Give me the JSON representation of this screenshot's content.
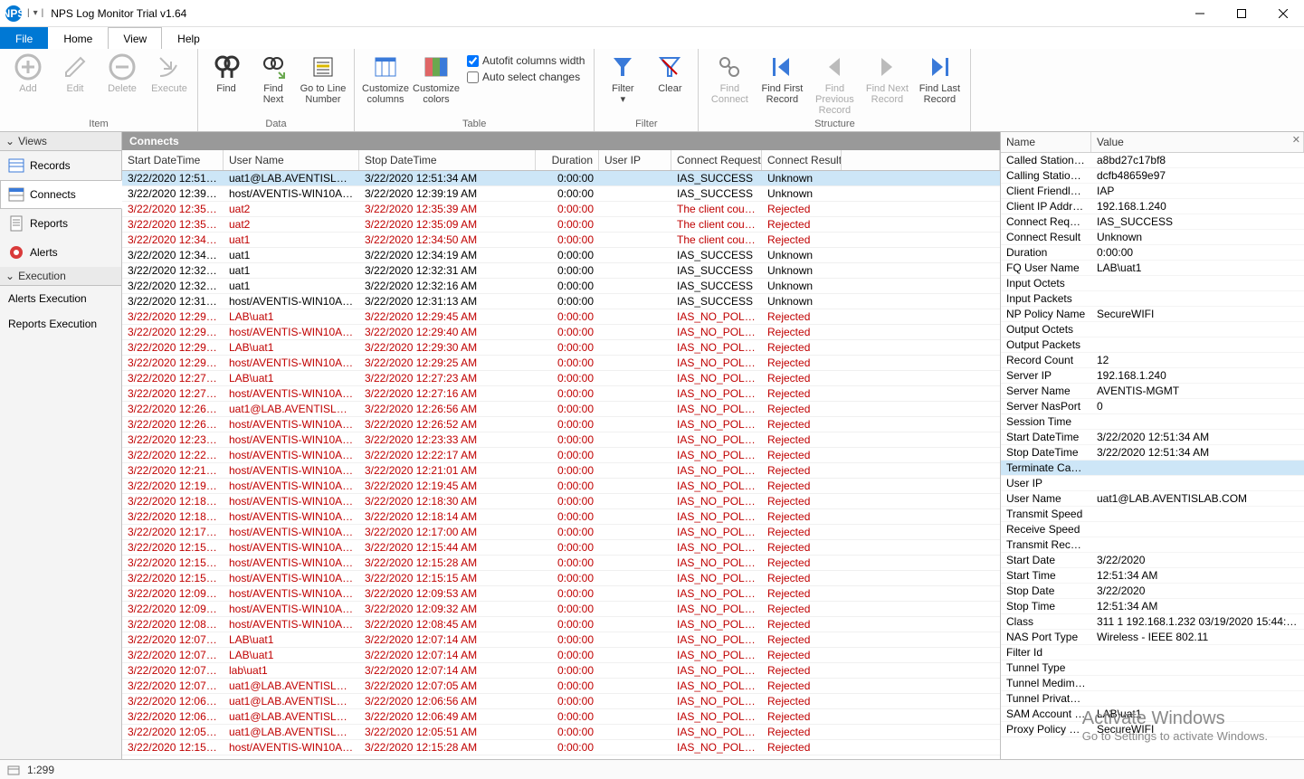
{
  "app": {
    "icon_text": "NPS",
    "title": "NPS Log Monitor Trial v1.64"
  },
  "menu": {
    "file": "File",
    "home": "Home",
    "view": "View",
    "help": "Help",
    "active": "View"
  },
  "ribbon": {
    "groups": {
      "item": {
        "label": "Item",
        "btns": [
          {
            "id": "add",
            "label": "Add"
          },
          {
            "id": "edit",
            "label": "Edit"
          },
          {
            "id": "delete",
            "label": "Delete"
          },
          {
            "id": "execute",
            "label": "Execute"
          }
        ]
      },
      "data": {
        "label": "Data",
        "btns": [
          {
            "id": "find",
            "label": "Find"
          },
          {
            "id": "find-next",
            "label": "Find\nNext"
          },
          {
            "id": "goto-line",
            "label": "Go to Line\nNumber"
          }
        ]
      },
      "table": {
        "label": "Table",
        "btns": [
          {
            "id": "customize-columns",
            "label": "Customize\ncolumns"
          },
          {
            "id": "customize-colors",
            "label": "Customize\ncolors"
          }
        ],
        "opts": {
          "autofit": "Autofit columns width",
          "autoselect": "Auto select changes"
        }
      },
      "filter": {
        "label": "Filter",
        "btns": [
          {
            "id": "filter",
            "label": "Filter"
          },
          {
            "id": "clear",
            "label": "Clear"
          }
        ]
      },
      "structure": {
        "label": "Structure",
        "btns": [
          {
            "id": "find-connect",
            "label": "Find\nConnect"
          },
          {
            "id": "find-first-record",
            "label": "Find First\nRecord"
          },
          {
            "id": "find-previous-record",
            "label": "Find Previous\nRecord"
          },
          {
            "id": "find-next-record",
            "label": "Find Next\nRecord"
          },
          {
            "id": "find-last-record",
            "label": "Find Last\nRecord"
          }
        ]
      }
    }
  },
  "sidebar": {
    "views_header": "Views",
    "views": [
      {
        "id": "records",
        "label": "Records"
      },
      {
        "id": "connects",
        "label": "Connects",
        "selected": true
      },
      {
        "id": "reports",
        "label": "Reports"
      },
      {
        "id": "alerts",
        "label": "Alerts"
      }
    ],
    "exec_header": "Execution",
    "exec": [
      {
        "id": "alerts-exec",
        "label": "Alerts Execution"
      },
      {
        "id": "reports-exec",
        "label": "Reports Execution"
      }
    ]
  },
  "grid": {
    "title": "Connects",
    "columns": {
      "start": "Start DateTime",
      "user": "User Name",
      "stop": "Stop DateTime",
      "duration": "Duration",
      "uip": "User IP",
      "req": "Connect Request",
      "res": "Connect Result"
    },
    "rows": [
      {
        "sel": true,
        "red": false,
        "start": "3/22/2020 12:51:3...",
        "user": "uat1@LAB.AVENTISLAB.COM",
        "stop": "3/22/2020 12:51:34 AM",
        "dur": "0:00:00",
        "uip": "",
        "req": "IAS_SUCCESS",
        "res": "Unknown"
      },
      {
        "red": false,
        "start": "3/22/2020 12:39:1...",
        "user": "host/AVENTIS-WIN10A.LAB...",
        "stop": "3/22/2020 12:39:19 AM",
        "dur": "0:00:00",
        "uip": "",
        "req": "IAS_SUCCESS",
        "res": "Unknown"
      },
      {
        "red": true,
        "start": "3/22/2020 12:35:3...",
        "user": "uat2",
        "stop": "3/22/2020 12:35:39 AM",
        "dur": "0:00:00",
        "uip": "",
        "req": "The client could ...",
        "res": "Rejected"
      },
      {
        "red": true,
        "start": "3/22/2020 12:35:0...",
        "user": "uat2",
        "stop": "3/22/2020 12:35:09 AM",
        "dur": "0:00:00",
        "uip": "",
        "req": "The client could ...",
        "res": "Rejected"
      },
      {
        "red": true,
        "start": "3/22/2020 12:34:5...",
        "user": "uat1",
        "stop": "3/22/2020 12:34:50 AM",
        "dur": "0:00:00",
        "uip": "",
        "req": "The client could ...",
        "res": "Rejected"
      },
      {
        "red": false,
        "start": "3/22/2020 12:34:1...",
        "user": "uat1",
        "stop": "3/22/2020 12:34:19 AM",
        "dur": "0:00:00",
        "uip": "",
        "req": "IAS_SUCCESS",
        "res": "Unknown"
      },
      {
        "red": false,
        "start": "3/22/2020 12:32:3...",
        "user": "uat1",
        "stop": "3/22/2020 12:32:31 AM",
        "dur": "0:00:00",
        "uip": "",
        "req": "IAS_SUCCESS",
        "res": "Unknown"
      },
      {
        "red": false,
        "start": "3/22/2020 12:32:1...",
        "user": "uat1",
        "stop": "3/22/2020 12:32:16 AM",
        "dur": "0:00:00",
        "uip": "",
        "req": "IAS_SUCCESS",
        "res": "Unknown"
      },
      {
        "red": false,
        "start": "3/22/2020 12:31:1...",
        "user": "host/AVENTIS-WIN10A.LAB...",
        "stop": "3/22/2020 12:31:13 AM",
        "dur": "0:00:00",
        "uip": "",
        "req": "IAS_SUCCESS",
        "res": "Unknown"
      },
      {
        "red": true,
        "start": "3/22/2020 12:29:4...",
        "user": "LAB\\uat1",
        "stop": "3/22/2020 12:29:45 AM",
        "dur": "0:00:00",
        "uip": "",
        "req": "IAS_NO_POLIC...",
        "res": "Rejected"
      },
      {
        "red": true,
        "start": "3/22/2020 12:29:4...",
        "user": "host/AVENTIS-WIN10A.LAB...",
        "stop": "3/22/2020 12:29:40 AM",
        "dur": "0:00:00",
        "uip": "",
        "req": "IAS_NO_POLIC...",
        "res": "Rejected"
      },
      {
        "red": true,
        "start": "3/22/2020 12:29:3...",
        "user": "LAB\\uat1",
        "stop": "3/22/2020 12:29:30 AM",
        "dur": "0:00:00",
        "uip": "",
        "req": "IAS_NO_POLIC...",
        "res": "Rejected"
      },
      {
        "red": true,
        "start": "3/22/2020 12:29:2...",
        "user": "host/AVENTIS-WIN10A.LAB...",
        "stop": "3/22/2020 12:29:25 AM",
        "dur": "0:00:00",
        "uip": "",
        "req": "IAS_NO_POLIC...",
        "res": "Rejected"
      },
      {
        "red": true,
        "start": "3/22/2020 12:27:2...",
        "user": "LAB\\uat1",
        "stop": "3/22/2020 12:27:23 AM",
        "dur": "0:00:00",
        "uip": "",
        "req": "IAS_NO_POLIC...",
        "res": "Rejected"
      },
      {
        "red": true,
        "start": "3/22/2020 12:27:1...",
        "user": "host/AVENTIS-WIN10A.LAB...",
        "stop": "3/22/2020 12:27:16 AM",
        "dur": "0:00:00",
        "uip": "",
        "req": "IAS_NO_POLIC...",
        "res": "Rejected"
      },
      {
        "red": true,
        "start": "3/22/2020 12:26:5...",
        "user": "uat1@LAB.AVENTISLAB.COM",
        "stop": "3/22/2020 12:26:56 AM",
        "dur": "0:00:00",
        "uip": "",
        "req": "IAS_NO_POLIC...",
        "res": "Rejected"
      },
      {
        "red": true,
        "start": "3/22/2020 12:26:5...",
        "user": "host/AVENTIS-WIN10A.LAB...",
        "stop": "3/22/2020 12:26:52 AM",
        "dur": "0:00:00",
        "uip": "",
        "req": "IAS_NO_POLIC...",
        "res": "Rejected"
      },
      {
        "red": true,
        "start": "3/22/2020 12:23:3...",
        "user": "host/AVENTIS-WIN10A.LAB...",
        "stop": "3/22/2020 12:23:33 AM",
        "dur": "0:00:00",
        "uip": "",
        "req": "IAS_NO_POLIC...",
        "res": "Rejected"
      },
      {
        "red": true,
        "start": "3/22/2020 12:22:1...",
        "user": "host/AVENTIS-WIN10A.LAB...",
        "stop": "3/22/2020 12:22:17 AM",
        "dur": "0:00:00",
        "uip": "",
        "req": "IAS_NO_POLIC...",
        "res": "Rejected"
      },
      {
        "red": true,
        "start": "3/22/2020 12:21:0...",
        "user": "host/AVENTIS-WIN10A.LAB...",
        "stop": "3/22/2020 12:21:01 AM",
        "dur": "0:00:00",
        "uip": "",
        "req": "IAS_NO_POLIC...",
        "res": "Rejected"
      },
      {
        "red": true,
        "start": "3/22/2020 12:19:4...",
        "user": "host/AVENTIS-WIN10A.LAB...",
        "stop": "3/22/2020 12:19:45 AM",
        "dur": "0:00:00",
        "uip": "",
        "req": "IAS_NO_POLIC...",
        "res": "Rejected"
      },
      {
        "red": true,
        "start": "3/22/2020 12:18:3...",
        "user": "host/AVENTIS-WIN10A.LAB...",
        "stop": "3/22/2020 12:18:30 AM",
        "dur": "0:00:00",
        "uip": "",
        "req": "IAS_NO_POLIC...",
        "res": "Rejected"
      },
      {
        "red": true,
        "start": "3/22/2020 12:18:1...",
        "user": "host/AVENTIS-WIN10A.LAB...",
        "stop": "3/22/2020 12:18:14 AM",
        "dur": "0:00:00",
        "uip": "",
        "req": "IAS_NO_POLIC...",
        "res": "Rejected"
      },
      {
        "red": true,
        "start": "3/22/2020 12:17:0...",
        "user": "host/AVENTIS-WIN10A.LAB...",
        "stop": "3/22/2020 12:17:00 AM",
        "dur": "0:00:00",
        "uip": "",
        "req": "IAS_NO_POLIC...",
        "res": "Rejected"
      },
      {
        "red": true,
        "start": "3/22/2020 12:15:4...",
        "user": "host/AVENTIS-WIN10A.LAB...",
        "stop": "3/22/2020 12:15:44 AM",
        "dur": "0:00:00",
        "uip": "",
        "req": "IAS_NO_POLIC...",
        "res": "Rejected"
      },
      {
        "red": true,
        "start": "3/22/2020 12:15:2...",
        "user": "host/AVENTIS-WIN10A.LAB...",
        "stop": "3/22/2020 12:15:28 AM",
        "dur": "0:00:00",
        "uip": "",
        "req": "IAS_NO_POLIC...",
        "res": "Rejected"
      },
      {
        "red": true,
        "start": "3/22/2020 12:15:1...",
        "user": "host/AVENTIS-WIN10A.LAB...",
        "stop": "3/22/2020 12:15:15 AM",
        "dur": "0:00:00",
        "uip": "",
        "req": "IAS_NO_POLIC...",
        "res": "Rejected"
      },
      {
        "red": true,
        "start": "3/22/2020 12:09:5...",
        "user": "host/AVENTIS-WIN10A.LAB...",
        "stop": "3/22/2020 12:09:53 AM",
        "dur": "0:00:00",
        "uip": "",
        "req": "IAS_NO_POLIC...",
        "res": "Rejected"
      },
      {
        "red": true,
        "start": "3/22/2020 12:09:3...",
        "user": "host/AVENTIS-WIN10A.LAB...",
        "stop": "3/22/2020 12:09:32 AM",
        "dur": "0:00:00",
        "uip": "",
        "req": "IAS_NO_POLIC...",
        "res": "Rejected"
      },
      {
        "red": true,
        "start": "3/22/2020 12:08:4...",
        "user": "host/AVENTIS-WIN10A.LAB...",
        "stop": "3/22/2020 12:08:45 AM",
        "dur": "0:00:00",
        "uip": "",
        "req": "IAS_NO_POLIC...",
        "res": "Rejected"
      },
      {
        "red": true,
        "start": "3/22/2020 12:07:1...",
        "user": "LAB\\uat1",
        "stop": "3/22/2020 12:07:14 AM",
        "dur": "0:00:00",
        "uip": "",
        "req": "IAS_NO_POLIC...",
        "res": "Rejected"
      },
      {
        "red": true,
        "start": "3/22/2020 12:07:1...",
        "user": "LAB\\uat1",
        "stop": "3/22/2020 12:07:14 AM",
        "dur": "0:00:00",
        "uip": "",
        "req": "IAS_NO_POLIC...",
        "res": "Rejected"
      },
      {
        "red": true,
        "start": "3/22/2020 12:07:1...",
        "user": "lab\\uat1",
        "stop": "3/22/2020 12:07:14 AM",
        "dur": "0:00:00",
        "uip": "",
        "req": "IAS_NO_POLIC...",
        "res": "Rejected"
      },
      {
        "red": true,
        "start": "3/22/2020 12:07:0...",
        "user": "uat1@LAB.AVENTISLAB.COM",
        "stop": "3/22/2020 12:07:05 AM",
        "dur": "0:00:00",
        "uip": "",
        "req": "IAS_NO_POLIC...",
        "res": "Rejected"
      },
      {
        "red": true,
        "start": "3/22/2020 12:06:5...",
        "user": "uat1@LAB.AVENTISLAB.COM",
        "stop": "3/22/2020 12:06:56 AM",
        "dur": "0:00:00",
        "uip": "",
        "req": "IAS_NO_POLIC...",
        "res": "Rejected"
      },
      {
        "red": true,
        "start": "3/22/2020 12:06:4...",
        "user": "uat1@LAB.AVENTISLAB.COM",
        "stop": "3/22/2020 12:06:49 AM",
        "dur": "0:00:00",
        "uip": "",
        "req": "IAS_NO_POLIC...",
        "res": "Rejected"
      },
      {
        "red": true,
        "start": "3/22/2020 12:05:5...",
        "user": "uat1@LAB.AVENTISLAB.COM",
        "stop": "3/22/2020 12:05:51 AM",
        "dur": "0:00:00",
        "uip": "",
        "req": "IAS_NO_POLIC...",
        "res": "Rejected"
      },
      {
        "red": true,
        "start": "3/22/2020 12:15:2...",
        "user": "host/AVENTIS-WIN10A.LAB...",
        "stop": "3/22/2020 12:15:28 AM",
        "dur": "0:00:00",
        "uip": "",
        "req": "IAS_NO_POLIC...",
        "res": "Rejected"
      }
    ]
  },
  "detail": {
    "headers": {
      "name": "Name",
      "value": "Value"
    },
    "rows": [
      {
        "n": "Called Station Id",
        "v": "a8bd27c17bf8"
      },
      {
        "n": "Calling Station Id",
        "v": "dcfb48659e97"
      },
      {
        "n": "Client Friendly N...",
        "v": "IAP"
      },
      {
        "n": "Client IP Address",
        "v": "192.168.1.240"
      },
      {
        "n": "Connect Request",
        "v": "IAS_SUCCESS"
      },
      {
        "n": "Connect Result",
        "v": "Unknown"
      },
      {
        "n": "Duration",
        "v": "0:00:00"
      },
      {
        "n": "FQ User Name",
        "v": "LAB\\uat1"
      },
      {
        "n": "Input Octets",
        "v": ""
      },
      {
        "n": "Input Packets",
        "v": ""
      },
      {
        "n": "NP Policy Name",
        "v": "SecureWIFI"
      },
      {
        "n": "Output Octets",
        "v": ""
      },
      {
        "n": "Output Packets",
        "v": ""
      },
      {
        "n": "Record Count",
        "v": "12"
      },
      {
        "n": "Server IP",
        "v": "192.168.1.240"
      },
      {
        "n": "Server Name",
        "v": "AVENTIS-MGMT"
      },
      {
        "n": "Server NasPort",
        "v": "0"
      },
      {
        "n": "Session Time",
        "v": ""
      },
      {
        "n": "Start DateTime",
        "v": "3/22/2020 12:51:34 AM"
      },
      {
        "n": "Stop DateTime",
        "v": "3/22/2020 12:51:34 AM"
      },
      {
        "n": "Terminate Cause",
        "v": "",
        "hl": true
      },
      {
        "n": "User IP",
        "v": ""
      },
      {
        "n": "User Name",
        "v": "uat1@LAB.AVENTISLAB.COM"
      },
      {
        "n": "Transmit Speed",
        "v": ""
      },
      {
        "n": "Receive Speed",
        "v": ""
      },
      {
        "n": "Transmit Receiv...",
        "v": ""
      },
      {
        "n": "Start Date",
        "v": "3/22/2020"
      },
      {
        "n": "Start Time",
        "v": "12:51:34 AM"
      },
      {
        "n": "Stop Date",
        "v": "3/22/2020"
      },
      {
        "n": "Stop Time",
        "v": "12:51:34 AM"
      },
      {
        "n": "Class",
        "v": "311 1 192.168.1.232 03/19/2020 15:44:4..."
      },
      {
        "n": "NAS Port Type",
        "v": "Wireless - IEEE 802.11"
      },
      {
        "n": "Filter Id",
        "v": ""
      },
      {
        "n": "Tunnel Type",
        "v": ""
      },
      {
        "n": "Tunnel Medim T...",
        "v": ""
      },
      {
        "n": "Tunnel Private ...",
        "v": ""
      },
      {
        "n": "SAM Account N...",
        "v": "LAB\\uat1"
      },
      {
        "n": "Proxy Policy Name",
        "v": "SecureWIFI"
      }
    ]
  },
  "status": {
    "text": "1:299"
  },
  "watermark": {
    "big": "Activate Windows",
    "small": "Go to Settings to activate Windows."
  }
}
